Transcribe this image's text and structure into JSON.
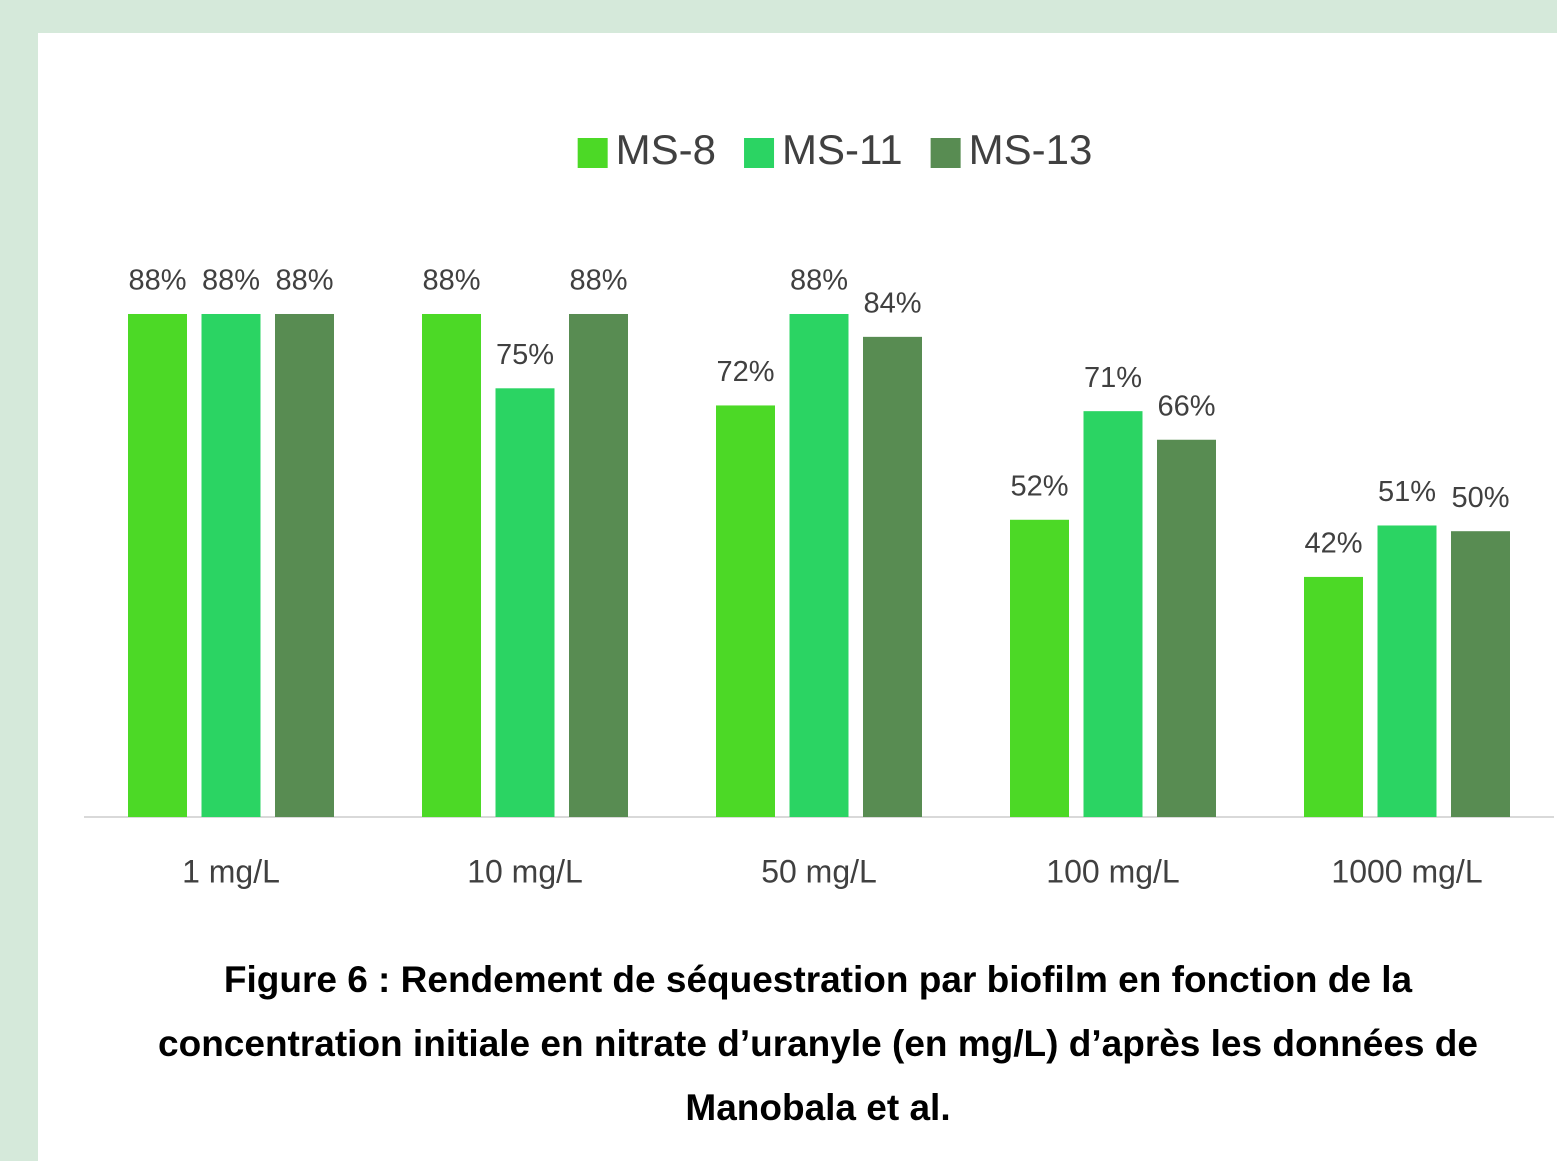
{
  "chart_data": {
    "type": "bar",
    "title": "Figure 6 : Rendement de séquestration par biofilm en fonction de la concentration initiale en nitrate d’uranyle (en mg/L) d’après les données de Manobala et al.",
    "categories": [
      "1 mg/L",
      "10 mg/L",
      "50 mg/L",
      "100 mg/L",
      "1000 mg/L"
    ],
    "series": [
      {
        "name": "MS-8",
        "color": "#4cd926",
        "values": [
          88,
          88,
          72,
          52,
          42
        ],
        "value_labels": [
          "88%",
          "88%",
          "72%",
          "52%",
          "42%"
        ]
      },
      {
        "name": "MS-11",
        "color": "#2bd463",
        "values": [
          88,
          75,
          88,
          71,
          51
        ],
        "value_labels": [
          "88%",
          "75%",
          "88%",
          "71%",
          "51%"
        ]
      },
      {
        "name": "MS-13",
        "color": "#588c52",
        "values": [
          88,
          88,
          84,
          66,
          50
        ],
        "value_labels": [
          "88%",
          "88%",
          "84%",
          "66%",
          "50%"
        ]
      }
    ],
    "ylim": [
      0,
      100
    ],
    "legend": "top"
  }
}
